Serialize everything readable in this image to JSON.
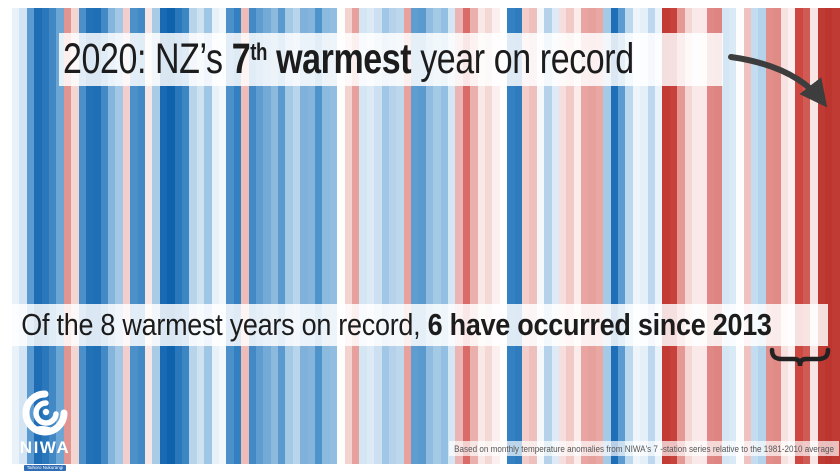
{
  "slide": {
    "title": {
      "segments": [
        {
          "text": "2020: NZ’s ",
          "bold": false
        },
        {
          "text": "7",
          "bold": true
        },
        {
          "text": "th",
          "bold": true,
          "sup": true
        },
        {
          "text": " warmest",
          "bold": true
        },
        {
          "text": " year on record",
          "bold": false
        }
      ],
      "plain": "2020: NZ’s 7th warmest year on record"
    },
    "statement": {
      "segments": [
        {
          "text": "Of the 8 warmest years on record, ",
          "bold": false
        },
        {
          "text": "6 have occurred since 2013",
          "bold": true
        }
      ],
      "plain": "Of the 8 warmest years on record, 6 have occurred since 2013"
    },
    "caption": "Based on monthly temperature anomalies from  NIWA's 7 -station series relative to the 1981-2010 average",
    "logo": {
      "name": "NIWA",
      "tagline": "Taihoro Nukurangi"
    }
  },
  "colors": {
    "page_background": "#ffffff",
    "text": "#1c1c1c",
    "caption_text": "#565656",
    "arrow": "#3d3d3d",
    "brace": "#222222",
    "band_background": "rgba(255,255,255,0.84)",
    "logo_white": "#ffffff",
    "logo_tagline_blue": "#2f6db5"
  },
  "chart_data": {
    "type": "heatmap",
    "subtype": "warming-stripes",
    "title": "2020: NZ’s 7th warmest year on record",
    "stripe_count": 112,
    "orientation": "one vertical stripe per year, oldest at left, rightmost stripe is 2020",
    "legend": "blue = cooler than 1981-2010 average, red = warmer",
    "annotations": [
      {
        "name": "arrow",
        "meaning": "points to the 2020 stripe at far right"
      },
      {
        "name": "brace",
        "meaning": "groups the recent warm (red) stripes since 2013"
      }
    ],
    "stripe_colors": [
      "#eaf2f9",
      "#d3e5f3",
      "#5b9bd1",
      "#1e6db5",
      "#2a77bb",
      "#4288c5",
      "#6ba6d4",
      "#e29490",
      "#f3d5d2",
      "#4c90ca",
      "#2272b8",
      "#1f6fb6",
      "#4389c6",
      "#85b5dc",
      "#a2c8e6",
      "#f2cfcc",
      "#4c90ca",
      "#4389c6",
      "#f8e6e4",
      "#a8cbe6",
      "#1a6ab3",
      "#0f63ad",
      "#2a77bb",
      "#3c86c4",
      "#b8d4ea",
      "#cfe2f2",
      "#9fc6e4",
      "#e8f1f8",
      "#f2f7fb",
      "#4c90ca",
      "#3381c1",
      "#eebbb6",
      "#4389c6",
      "#5f9cd0",
      "#74aad6",
      "#8cbade",
      "#5a9ace",
      "#a4c9e5",
      "#b9d5ec",
      "#7fb1da",
      "#85b5dc",
      "#4f93cb",
      "#8abade",
      "#90bde0",
      "#fdfdfe",
      "#f4d2d0",
      "#e8a09c",
      "#d4e5f3",
      "#dceaf5",
      "#cce0f1",
      "#a0c7e5",
      "#b5d2ea",
      "#bdd7ed",
      "#e9a19d",
      "#5f9cd0",
      "#5a9ace",
      "#8fbce0",
      "#a5cae6",
      "#93c0e2",
      "#d4e5f3",
      "#eab5b2",
      "#d96c68",
      "#e9b0ac",
      "#f8e8e6",
      "#f3d8d6",
      "#fbf0ef",
      "#fefefe",
      "#3381c1",
      "#2e7cbe",
      "#f2cdca",
      "#edc0bd",
      "#f4f8fb",
      "#b5d2ea",
      "#dcebf6",
      "#f6dedd",
      "#f1cac8",
      "#faeceb",
      "#e8a5a1",
      "#e7a19d",
      "#e9a8a4",
      "#a5cae6",
      "#1f6fb6",
      "#5b9bd1",
      "#bcd8ee",
      "#eef5fa",
      "#e4eff8",
      "#bdd8ee",
      "#eaf2f9",
      "#c23b35",
      "#c8423c",
      "#e59894",
      "#f4d7d5",
      "#f9e9e8",
      "#fae9e8",
      "#e08885",
      "#df8581",
      "#d4e6f4",
      "#d9e9f5",
      "#fdfdfd",
      "#f0c2bf",
      "#c4dcf0",
      "#b4d2ea",
      "#e28f8b",
      "#e18b87",
      "#f7e2e1",
      "#fbf0ef",
      "#cc4841",
      "#d05a54",
      "#f8e5e4",
      "#c03a34",
      "#bd352f",
      "#c13b35"
    ]
  }
}
